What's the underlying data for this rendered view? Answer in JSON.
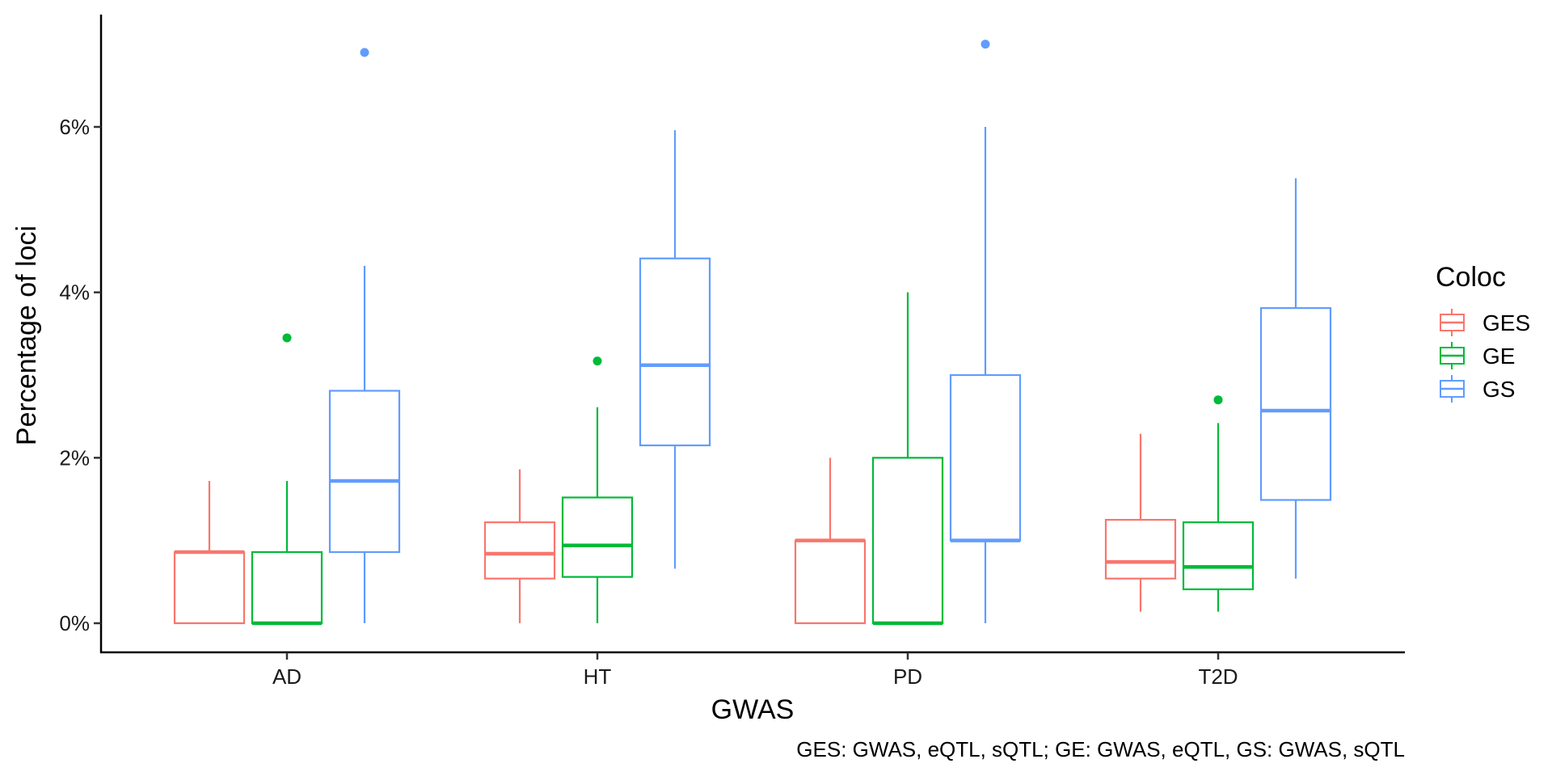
{
  "chart_data": {
    "type": "box",
    "xlabel": "GWAS",
    "ylabel": "Percentage of loci",
    "categories": [
      "AD",
      "HT",
      "PD",
      "T2D"
    ],
    "y_ticks": [
      0,
      2,
      4,
      6
    ],
    "y_tick_labels": [
      "0%",
      "2%",
      "4%",
      "6%"
    ],
    "ylim": [
      -0.35,
      7.35
    ],
    "y_unit": "%",
    "legend": {
      "title": "Coloc",
      "position": "right"
    },
    "caption": "GES: GWAS, eQTL, sQTL; GE: GWAS, eQTL, GS: GWAS, sQTL",
    "grid": false,
    "series": [
      {
        "name": "GES",
        "color": "#F8766D",
        "boxes": [
          {
            "category": "AD",
            "whisker_low": 0.0,
            "q1": 0.0,
            "median": 0.86,
            "q3": 0.86,
            "whisker_high": 1.72,
            "outliers": []
          },
          {
            "category": "HT",
            "whisker_low": 0.0,
            "q1": 0.54,
            "median": 0.84,
            "q3": 1.22,
            "whisker_high": 1.86,
            "outliers": []
          },
          {
            "category": "PD",
            "whisker_low": 0.0,
            "q1": 0.0,
            "median": 1.0,
            "q3": 1.0,
            "whisker_high": 2.0,
            "outliers": []
          },
          {
            "category": "T2D",
            "whisker_low": 0.14,
            "q1": 0.54,
            "median": 0.74,
            "q3": 1.25,
            "whisker_high": 2.29,
            "outliers": []
          }
        ]
      },
      {
        "name": "GE",
        "color": "#00BA38",
        "boxes": [
          {
            "category": "AD",
            "whisker_low": 0.0,
            "q1": 0.0,
            "median": 0.0,
            "q3": 0.86,
            "whisker_high": 1.72,
            "outliers": [
              3.45
            ]
          },
          {
            "category": "HT",
            "whisker_low": 0.0,
            "q1": 0.56,
            "median": 0.94,
            "q3": 1.52,
            "whisker_high": 2.61,
            "outliers": [
              3.17
            ]
          },
          {
            "category": "PD",
            "whisker_low": 0.0,
            "q1": 0.0,
            "median": 0.0,
            "q3": 2.0,
            "whisker_high": 4.0,
            "outliers": []
          },
          {
            "category": "T2D",
            "whisker_low": 0.14,
            "q1": 0.41,
            "median": 0.68,
            "q3": 1.22,
            "whisker_high": 2.42,
            "outliers": [
              2.7
            ]
          }
        ]
      },
      {
        "name": "GS",
        "color": "#619CFF",
        "boxes": [
          {
            "category": "AD",
            "whisker_low": 0.0,
            "q1": 0.86,
            "median": 1.72,
            "q3": 2.81,
            "whisker_high": 4.32,
            "outliers": [
              6.9
            ]
          },
          {
            "category": "HT",
            "whisker_low": 0.66,
            "q1": 2.15,
            "median": 3.12,
            "q3": 4.41,
            "whisker_high": 5.96,
            "outliers": []
          },
          {
            "category": "PD",
            "whisker_low": 0.0,
            "q1": 1.0,
            "median": 1.0,
            "q3": 3.0,
            "whisker_high": 6.0,
            "outliers": [
              7.0
            ]
          },
          {
            "category": "T2D",
            "whisker_low": 0.54,
            "q1": 1.49,
            "median": 2.57,
            "q3": 3.81,
            "whisker_high": 5.38,
            "outliers": []
          }
        ]
      }
    ]
  }
}
